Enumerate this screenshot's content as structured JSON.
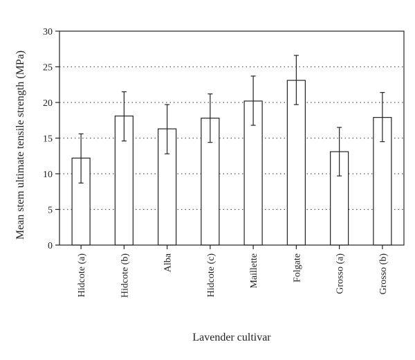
{
  "chart_data": {
    "type": "bar",
    "categories": [
      "Hidcote (a)",
      "Hidcote (b)",
      "Alba",
      "Hidcote (c)",
      "Maillette",
      "Folgate",
      "Grosso (a)",
      "Grosso (b)"
    ],
    "values": [
      12.2,
      18.1,
      16.3,
      17.8,
      20.2,
      23.1,
      13.1,
      17.9
    ],
    "error_low": [
      8.7,
      14.6,
      12.8,
      14.4,
      16.8,
      19.7,
      9.7,
      14.5
    ],
    "error_high": [
      15.6,
      21.5,
      19.7,
      21.2,
      23.7,
      26.6,
      16.5,
      21.4
    ],
    "xlabel": "Lavender cultivar",
    "ylabel": "Mean stem ultimate tensile strength (MPa)",
    "ylim": [
      0,
      30
    ],
    "yticks": [
      0,
      5,
      10,
      15,
      20,
      25,
      30
    ],
    "ytick_labels": [
      "0",
      "5",
      "10",
      "15",
      "20",
      "25",
      "30"
    ],
    "grid": "horizontal dotted",
    "colors": {
      "bar_fill": "#ffffff",
      "bar_stroke": "#222222",
      "grid": "#555555"
    }
  }
}
